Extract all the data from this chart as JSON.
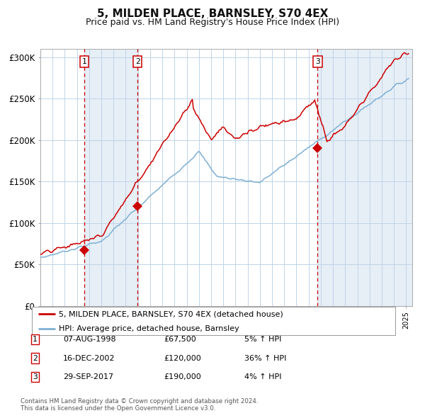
{
  "title": "5, MILDEN PLACE, BARNSLEY, S70 4EX",
  "subtitle": "Price paid vs. HM Land Registry's House Price Index (HPI)",
  "title_fontsize": 11,
  "subtitle_fontsize": 9,
  "ylim": [
    0,
    310000
  ],
  "yticks": [
    0,
    50000,
    100000,
    150000,
    200000,
    250000,
    300000
  ],
  "ytick_labels": [
    "£0",
    "£50K",
    "£100K",
    "£150K",
    "£200K",
    "£250K",
    "£300K"
  ],
  "background_color": "#ffffff",
  "plot_bg_color": "#ffffff",
  "grid_color": "#c0d4e8",
  "sales": [
    {
      "date_year": 1998.59,
      "price": 67500,
      "label": "1"
    },
    {
      "date_year": 2002.96,
      "price": 120000,
      "label": "2"
    },
    {
      "date_year": 2017.74,
      "price": 190000,
      "label": "3"
    }
  ],
  "sale_marker_color": "#cc0000",
  "dashed_line_color": "#cc0000",
  "shade_color": "#d6e4f0",
  "red_line_color": "#cc0000",
  "blue_line_color": "#7fb0d4",
  "xlim_start": 1995.0,
  "xlim_end": 2025.5,
  "legend_entries": [
    "5, MILDEN PLACE, BARNSLEY, S70 4EX (detached house)",
    "HPI: Average price, detached house, Barnsley"
  ],
  "footnote1": "Contains HM Land Registry data © Crown copyright and database right 2024.",
  "footnote2": "This data is licensed under the Open Government Licence v3.0.",
  "table_rows": [
    {
      "num": "1",
      "date": "07-AUG-1998",
      "price": "£67,500",
      "change": "5% ↑ HPI"
    },
    {
      "num": "2",
      "date": "16-DEC-2002",
      "price": "£120,000",
      "change": "36% ↑ HPI"
    },
    {
      "num": "3",
      "date": "29-SEP-2017",
      "price": "£190,000",
      "change": "4% ↑ HPI"
    }
  ]
}
